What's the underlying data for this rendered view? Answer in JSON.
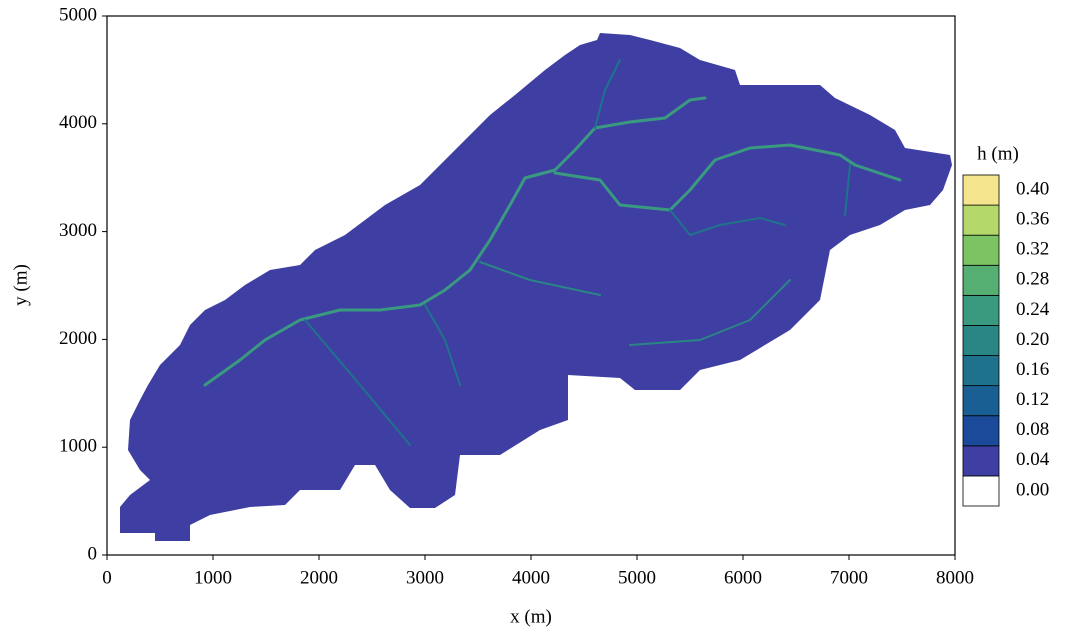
{
  "chart_data": {
    "type": "contour",
    "x_label": "x (m)",
    "y_label": "y (m)",
    "xlim": [
      0,
      8000
    ],
    "ylim": [
      0,
      5000
    ],
    "xticks": [
      0,
      1000,
      2000,
      3000,
      4000,
      5000,
      6000,
      7000,
      8000
    ],
    "yticks": [
      0,
      1000,
      2000,
      3000,
      4000,
      5000
    ],
    "colorbar": {
      "title": "h (m)",
      "levels": [
        {
          "value": 0,
          "label": "0.00"
        },
        {
          "value": 0.04,
          "label": "0.04"
        },
        {
          "value": 0.08,
          "label": "0.08"
        },
        {
          "value": 0.12,
          "label": "0.12"
        },
        {
          "value": 0.16,
          "label": "0.16"
        },
        {
          "value": 0.2,
          "label": "0.20"
        },
        {
          "value": 0.24,
          "label": "0.24"
        },
        {
          "value": 0.28,
          "label": "0.28"
        },
        {
          "value": 0.32,
          "label": "0.32"
        },
        {
          "value": 0.36,
          "label": "0.36"
        },
        {
          "value": 0.4,
          "label": "0.40"
        }
      ],
      "colors": [
        "#ffffff",
        "#3f3fa3",
        "#1b4a9b",
        "#195f94",
        "#1f728c",
        "#2a8585",
        "#3a9a7f",
        "#55ae72",
        "#7cc463",
        "#b5d86a",
        "#f4e58e"
      ]
    }
  }
}
